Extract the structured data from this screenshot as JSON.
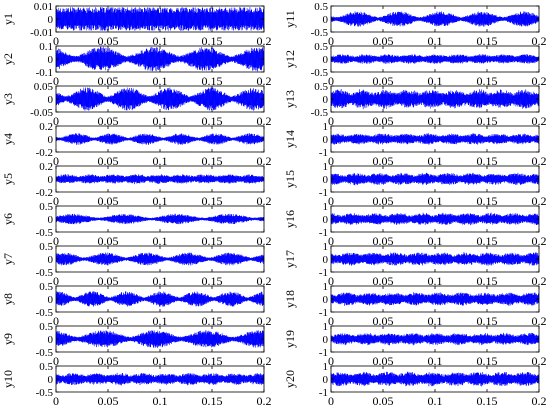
{
  "chart_data": {
    "type": "line",
    "description_layout": "grid",
    "x_range": [
      0,
      0.2
    ],
    "x_ticks": [
      "0",
      "0.05",
      "0.1",
      "0.15",
      "0.2"
    ],
    "line_color": "#0000ff",
    "grid": false,
    "panels": [
      {
        "name": "y1",
        "ylim": [
          -0.01,
          0.01
        ],
        "yticks": [
          "0.01",
          "0",
          "-0.01"
        ],
        "amplitude": 0.0095,
        "pattern": "uniform"
      },
      {
        "name": "y2",
        "ylim": [
          -0.1,
          0.1
        ],
        "yticks": [
          "0.1",
          "0",
          "-0.1"
        ],
        "amplitude": 0.095,
        "pattern": "bursts"
      },
      {
        "name": "y3",
        "ylim": [
          -0.05,
          0.05
        ],
        "yticks": [
          "0.05",
          "0",
          "-0.05"
        ],
        "amplitude": 0.045,
        "pattern": "bursts"
      },
      {
        "name": "y4",
        "ylim": [
          -0.2,
          0.2
        ],
        "yticks": [
          "0.2",
          "0",
          "-0.2"
        ],
        "amplitude": 0.09,
        "pattern": "bursts"
      },
      {
        "name": "y5",
        "ylim": [
          -0.2,
          0.2
        ],
        "yticks": [
          "0.2",
          "0",
          "-0.2"
        ],
        "amplitude": 0.08,
        "pattern": "noisy"
      },
      {
        "name": "y6",
        "ylim": [
          -0.5,
          0.5
        ],
        "yticks": [
          "0.5",
          "0",
          "-0.5"
        ],
        "amplitude": 0.2,
        "pattern": "bursts"
      },
      {
        "name": "y7",
        "ylim": [
          -0.5,
          0.5
        ],
        "yticks": [
          "0.5",
          "0",
          "-0.5"
        ],
        "amplitude": 0.25,
        "pattern": "bursts"
      },
      {
        "name": "y8",
        "ylim": [
          -0.5,
          0.5
        ],
        "yticks": [
          "0.5",
          "0",
          "-0.5"
        ],
        "amplitude": 0.3,
        "pattern": "bursts"
      },
      {
        "name": "y9",
        "ylim": [
          -0.5,
          0.5
        ],
        "yticks": [
          "0.5",
          "0",
          "-0.5"
        ],
        "amplitude": 0.35,
        "pattern": "bursts"
      },
      {
        "name": "y10",
        "ylim": [
          -0.5,
          0.5
        ],
        "yticks": [
          "0.5",
          "0",
          "-0.5"
        ],
        "amplitude": 0.25,
        "pattern": "noisy"
      },
      {
        "name": "y11",
        "ylim": [
          -0.5,
          0.5
        ],
        "yticks": [
          "0.5",
          "0",
          "-0.5"
        ],
        "amplitude": 0.3,
        "pattern": "bursts"
      },
      {
        "name": "y12",
        "ylim": [
          -0.5,
          0.5
        ],
        "yticks": [
          "0.5",
          "0",
          "-0.5"
        ],
        "amplitude": 0.2,
        "pattern": "noisy"
      },
      {
        "name": "y13",
        "ylim": [
          -0.5,
          0.5
        ],
        "yticks": [
          "0.5",
          "0",
          "-0.5"
        ],
        "amplitude": 0.4,
        "pattern": "noisy"
      },
      {
        "name": "y14",
        "ylim": [
          -1,
          1
        ],
        "yticks": [
          "1",
          "0",
          "-1"
        ],
        "amplitude": 0.45,
        "pattern": "noisy"
      },
      {
        "name": "y15",
        "ylim": [
          -1,
          1
        ],
        "yticks": [
          "1",
          "0",
          "-1"
        ],
        "amplitude": 0.5,
        "pattern": "noisy"
      },
      {
        "name": "y16",
        "ylim": [
          -1,
          1
        ],
        "yticks": [
          "1",
          "0",
          "-1"
        ],
        "amplitude": 0.5,
        "pattern": "noisy"
      },
      {
        "name": "y17",
        "ylim": [
          -1,
          1
        ],
        "yticks": [
          "1",
          "0",
          "-1"
        ],
        "amplitude": 0.55,
        "pattern": "noisy"
      },
      {
        "name": "y18",
        "ylim": [
          -1,
          1
        ],
        "yticks": [
          "1",
          "0",
          "-1"
        ],
        "amplitude": 0.55,
        "pattern": "noisy"
      },
      {
        "name": "y19",
        "ylim": [
          -1,
          1
        ],
        "yticks": [
          "1",
          "0",
          "-1"
        ],
        "amplitude": 0.5,
        "pattern": "noisy"
      },
      {
        "name": "y20",
        "ylim": [
          -1,
          1
        ],
        "yticks": [
          "1",
          "0",
          "-1"
        ],
        "amplitude": 0.6,
        "pattern": "noisy"
      }
    ]
  }
}
